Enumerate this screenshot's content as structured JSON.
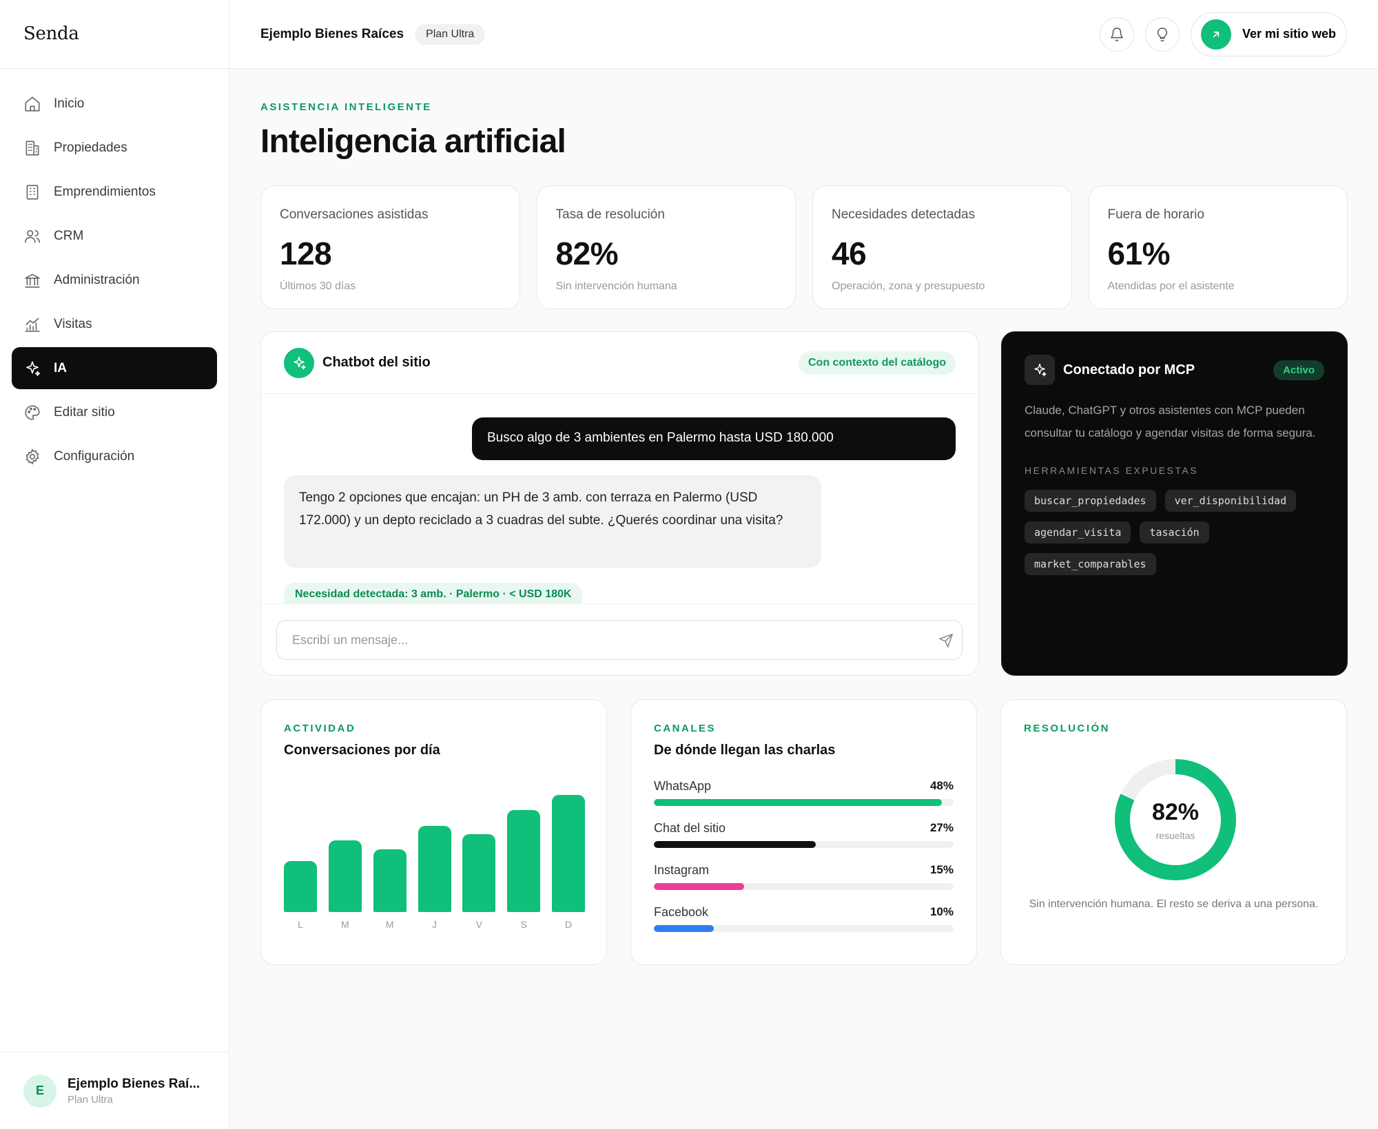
{
  "app": {
    "brand": "Senda"
  },
  "sidebar": {
    "items": [
      {
        "label": "Inicio",
        "icon": "home-icon",
        "active": false
      },
      {
        "label": "Propiedades",
        "icon": "building-icon",
        "active": false
      },
      {
        "label": "Emprendimientos",
        "icon": "office-icon",
        "active": false
      },
      {
        "label": "CRM",
        "icon": "users-icon",
        "active": false
      },
      {
        "label": "Administración",
        "icon": "bank-icon",
        "active": false
      },
      {
        "label": "Visitas",
        "icon": "chart-icon",
        "active": false
      },
      {
        "label": "IA",
        "icon": "sparkles-icon",
        "active": true
      },
      {
        "label": "Editar sitio",
        "icon": "palette-icon",
        "active": false
      },
      {
        "label": "Configuración",
        "icon": "gear-icon",
        "active": false
      }
    ],
    "footer": {
      "avatar_initial": "E",
      "name": "Ejemplo Bienes Raí...",
      "plan": "Plan Ultra"
    }
  },
  "header": {
    "org_name": "Ejemplo Bienes Raíces",
    "plan": "Plan Ultra",
    "site_button": "Ver mi sitio web"
  },
  "page": {
    "eyebrow": "ASISTENCIA INTELIGENTE",
    "title": "Inteligencia artificial"
  },
  "stats": [
    {
      "label": "Conversaciones asistidas",
      "value": "128",
      "sub": "Últimos 30 días"
    },
    {
      "label": "Tasa de resolución",
      "value": "82%",
      "sub": "Sin intervención humana"
    },
    {
      "label": "Necesidades detectadas",
      "value": "46",
      "sub": "Operación, zona y presupuesto"
    },
    {
      "label": "Fuera de horario",
      "value": "61%",
      "sub": "Atendidas por el asistente"
    }
  ],
  "chatbot": {
    "title": "Chatbot del sitio",
    "context_badge": "Con contexto del catálogo",
    "user_message": "Busco algo de 3 ambientes en Palermo hasta USD 180.000",
    "bot_message": "Tengo 2 opciones que encajan: un PH de 3 amb. con terraza en Palermo (USD 172.000) y un depto reciclado a 3 cuadras del subte. ¿Querés coordinar una visita?",
    "need_detected": "Necesidad detectada: 3 amb. · Palermo · < USD 180K",
    "input_placeholder": "Escribí un mensaje..."
  },
  "mcp": {
    "title": "Conectado por MCP",
    "status": "Activo",
    "description": "Claude, ChatGPT y otros asistentes con MCP pueden consultar tu catálogo y agendar visitas de forma segura.",
    "tools_label": "HERRAMIENTAS EXPUESTAS",
    "tools": [
      "buscar_propiedades",
      "ver_disponibilidad",
      "agendar_visita",
      "tasación",
      "market_comparables"
    ]
  },
  "activity": {
    "eyebrow": "ACTIVIDAD",
    "title": "Conversaciones por día"
  },
  "channels": {
    "eyebrow": "CANALES",
    "title": "De dónde llegan las charlas",
    "items": [
      {
        "label": "WhatsApp",
        "pct_label": "48%",
        "fill": 0.96,
        "color": "#0fbf7a"
      },
      {
        "label": "Chat del sitio",
        "pct_label": "27%",
        "fill": 0.54,
        "color": "#111111"
      },
      {
        "label": "Instagram",
        "pct_label": "15%",
        "fill": 0.3,
        "color": "#ec3d97"
      },
      {
        "label": "Facebook",
        "pct_label": "10%",
        "fill": 0.2,
        "color": "#2f7cf0"
      }
    ]
  },
  "resolution": {
    "eyebrow": "RESOLUCIÓN",
    "value_label": "82%",
    "value": 82,
    "sub": "resueltas",
    "note": "Sin intervención humana. El resto se deriva a una persona."
  },
  "colors": {
    "accent": "#0fbf7a",
    "dark": "#0d0d0d"
  },
  "chart_data": {
    "type": "bar",
    "categories": [
      "L",
      "M",
      "M",
      "J",
      "V",
      "S",
      "D"
    ],
    "values": [
      44,
      62,
      54,
      74,
      67,
      88,
      101
    ],
    "ylim": [
      0,
      101
    ],
    "color": "#0fbf7a"
  }
}
